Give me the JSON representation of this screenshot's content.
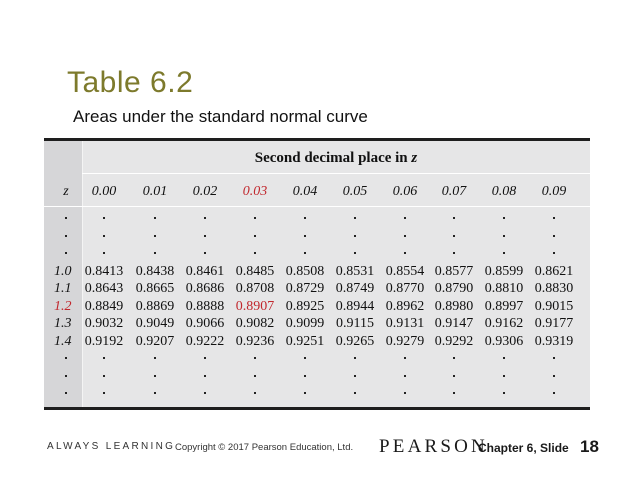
{
  "slide": {
    "title": "Table 6.2",
    "subtitle": "Areas under the standard normal curve"
  },
  "table": {
    "caption_prefix": "Second decimal place in ",
    "caption_var": "z",
    "z_header": "z",
    "columns": [
      "0.00",
      "0.01",
      "0.02",
      "0.03",
      "0.04",
      "0.05",
      "0.06",
      "0.07",
      "0.08",
      "0.09"
    ],
    "highlight_column_index": 3,
    "highlight_row_label": "1.2",
    "highlight_color": "#c1272d",
    "rows": [
      {
        "z": "1.0",
        "values": [
          "0.8413",
          "0.8438",
          "0.8461",
          "0.8485",
          "0.8508",
          "0.8531",
          "0.8554",
          "0.8577",
          "0.8599",
          "0.8621"
        ]
      },
      {
        "z": "1.1",
        "values": [
          "0.8643",
          "0.8665",
          "0.8686",
          "0.8708",
          "0.8729",
          "0.8749",
          "0.8770",
          "0.8790",
          "0.8810",
          "0.8830"
        ]
      },
      {
        "z": "1.2",
        "values": [
          "0.8849",
          "0.8869",
          "0.8888",
          "0.8907",
          "0.8925",
          "0.8944",
          "0.8962",
          "0.8980",
          "0.8997",
          "0.9015"
        ]
      },
      {
        "z": "1.3",
        "values": [
          "0.9032",
          "0.9049",
          "0.9066",
          "0.9082",
          "0.9099",
          "0.9115",
          "0.9131",
          "0.9147",
          "0.9162",
          "0.9177"
        ]
      },
      {
        "z": "1.4",
        "values": [
          "0.9192",
          "0.9207",
          "0.9222",
          "0.9236",
          "0.9251",
          "0.9265",
          "0.9279",
          "0.9292",
          "0.9306",
          "0.9319"
        ]
      }
    ],
    "ellipsis_rows_before": 3,
    "ellipsis_rows_after": 3
  },
  "footer": {
    "always_learning": "ALWAYS LEARNING",
    "copyright": "Copyright © 2017 Pearson Education, Ltd.",
    "brand": "PEARSON",
    "chapter_label": "Chapter 6, Slide",
    "slide_number": "18"
  },
  "colors": {
    "title": "#7d7a2c",
    "panel_bg": "#e6e6e7",
    "highlight": "#c1272d"
  }
}
